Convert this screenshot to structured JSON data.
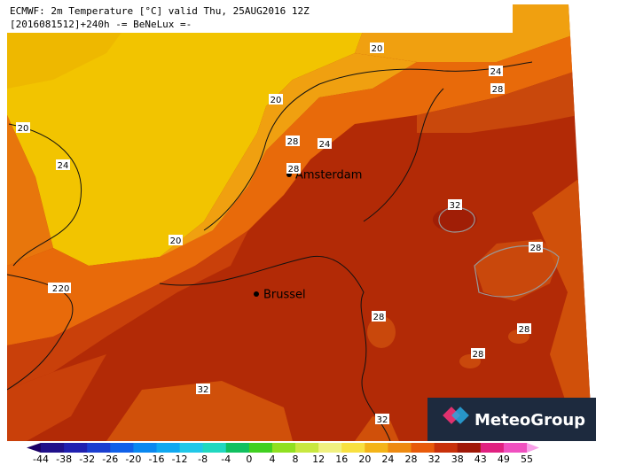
{
  "header": {
    "line1": "ECMWF: 2m Temperature [°C] valid Thu, 25AUG2016 12Z",
    "line2": "[2016081512]+240h -= BeNeLux =-"
  },
  "cities": [
    "Amsterdam",
    "Brussel"
  ],
  "contour_labels": [
    20,
    24,
    28,
    20,
    20,
    28,
    24,
    24,
    28,
    32,
    20,
    28,
    2,
    20,
    28,
    28,
    28,
    32,
    32
  ],
  "colorbar": {
    "ticks": [
      -44,
      -38,
      -32,
      -26,
      -20,
      -16,
      -12,
      -8,
      -4,
      0,
      4,
      8,
      12,
      16,
      20,
      24,
      28,
      32,
      38,
      43,
      49,
      55
    ]
  },
  "logo": "MeteoGroup"
}
